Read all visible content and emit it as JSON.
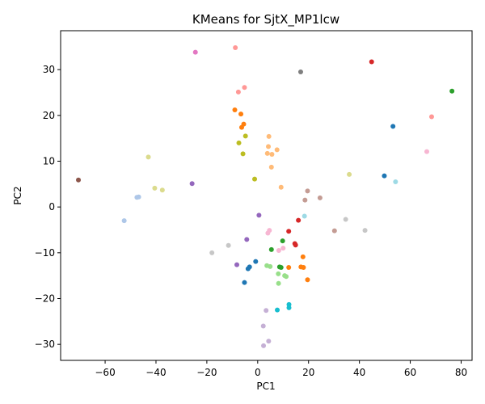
{
  "chart_data": {
    "type": "scatter",
    "title": "KMeans for SjtX_MP1lcw",
    "xlabel": "PC1",
    "ylabel": "PC2",
    "xlim": [
      -77.5,
      84.3
    ],
    "ylim": [
      -33.5,
      38.5
    ],
    "xticks": [
      -60,
      -40,
      -20,
      0,
      20,
      40,
      60,
      80
    ],
    "yticks": [
      -30,
      -20,
      -10,
      0,
      10,
      20,
      30
    ],
    "grid": false,
    "points": [
      {
        "x": -70.5,
        "y": 5.9,
        "color": "#8c564b"
      },
      {
        "x": -52.5,
        "y": -3.0,
        "color": "#aec7e8"
      },
      {
        "x": -47.5,
        "y": 2.1,
        "color": "#aec7e8"
      },
      {
        "x": -46.8,
        "y": 2.2,
        "color": "#aec7e8"
      },
      {
        "x": -43.0,
        "y": 10.9,
        "color": "#dbdb8d"
      },
      {
        "x": -40.5,
        "y": 4.1,
        "color": "#dbdb8d"
      },
      {
        "x": -37.5,
        "y": 3.7,
        "color": "#dbdb8d"
      },
      {
        "x": -24.5,
        "y": 33.8,
        "color": "#e377c2"
      },
      {
        "x": -25.8,
        "y": 5.1,
        "color": "#9467bd"
      },
      {
        "x": -18.0,
        "y": -10.0,
        "color": "#c7c7c7"
      },
      {
        "x": -11.5,
        "y": -8.4,
        "color": "#c7c7c7"
      },
      {
        "x": -8.8,
        "y": 34.8,
        "color": "#ff9896"
      },
      {
        "x": -7.6,
        "y": 25.1,
        "color": "#ff9896"
      },
      {
        "x": -5.2,
        "y": 26.1,
        "color": "#ff9896"
      },
      {
        "x": -9.0,
        "y": 21.2,
        "color": "#ff7f0e"
      },
      {
        "x": -6.6,
        "y": 20.3,
        "color": "#ff7f0e"
      },
      {
        "x": -5.5,
        "y": 18.1,
        "color": "#ff7f0e"
      },
      {
        "x": -6.3,
        "y": 17.4,
        "color": "#ff7f0e"
      },
      {
        "x": -4.8,
        "y": 15.5,
        "color": "#bcbd22"
      },
      {
        "x": -7.4,
        "y": 14.0,
        "color": "#bcbd22"
      },
      {
        "x": -5.8,
        "y": 11.6,
        "color": "#bcbd22"
      },
      {
        "x": -1.2,
        "y": 6.1,
        "color": "#bcbd22"
      },
      {
        "x": 4.4,
        "y": 15.4,
        "color": "#ffbb78"
      },
      {
        "x": 4.2,
        "y": 13.2,
        "color": "#ffbb78"
      },
      {
        "x": 7.6,
        "y": 12.5,
        "color": "#ffbb78"
      },
      {
        "x": 3.8,
        "y": 11.7,
        "color": "#ffbb78"
      },
      {
        "x": 5.6,
        "y": 11.5,
        "color": "#ffbb78"
      },
      {
        "x": 5.4,
        "y": 8.7,
        "color": "#ffbb78"
      },
      {
        "x": 9.2,
        "y": 4.3,
        "color": "#ffbb78"
      },
      {
        "x": 0.5,
        "y": -1.8,
        "color": "#9467bd"
      },
      {
        "x": -4.3,
        "y": -7.1,
        "color": "#9467bd"
      },
      {
        "x": -8.2,
        "y": -12.6,
        "color": "#9467bd"
      },
      {
        "x": -0.8,
        "y": -11.9,
        "color": "#1f77b4"
      },
      {
        "x": -3.2,
        "y": -13.1,
        "color": "#1f77b4"
      },
      {
        "x": -3.8,
        "y": -13.5,
        "color": "#1f77b4"
      },
      {
        "x": -5.2,
        "y": -16.5,
        "color": "#1f77b4"
      },
      {
        "x": 4.6,
        "y": -5.1,
        "color": "#f7b6d2"
      },
      {
        "x": 4.0,
        "y": -5.7,
        "color": "#f7b6d2"
      },
      {
        "x": 8.3,
        "y": -9.5,
        "color": "#f7b6d2"
      },
      {
        "x": 10.0,
        "y": -9.0,
        "color": "#f7b6d2"
      },
      {
        "x": 9.8,
        "y": -7.4,
        "color": "#2ca02c"
      },
      {
        "x": 5.4,
        "y": -9.3,
        "color": "#2ca02c"
      },
      {
        "x": 8.6,
        "y": -13.1,
        "color": "#2ca02c"
      },
      {
        "x": 9.2,
        "y": -13.2,
        "color": "#2ca02c"
      },
      {
        "x": 3.6,
        "y": -12.8,
        "color": "#98df8a"
      },
      {
        "x": 4.9,
        "y": -13.0,
        "color": "#98df8a"
      },
      {
        "x": 8.1,
        "y": -14.6,
        "color": "#98df8a"
      },
      {
        "x": 10.6,
        "y": -15.0,
        "color": "#98df8a"
      },
      {
        "x": 11.2,
        "y": -15.2,
        "color": "#98df8a"
      },
      {
        "x": 8.2,
        "y": -16.7,
        "color": "#98df8a"
      },
      {
        "x": 12.2,
        "y": -5.3,
        "color": "#d62728"
      },
      {
        "x": 14.6,
        "y": -8.0,
        "color": "#d62728"
      },
      {
        "x": 14.9,
        "y": -8.3,
        "color": "#d62728"
      },
      {
        "x": 16.0,
        "y": -2.9,
        "color": "#d62728"
      },
      {
        "x": 17.8,
        "y": -10.9,
        "color": "#ff7f0e"
      },
      {
        "x": 12.2,
        "y": -13.2,
        "color": "#ff7f0e"
      },
      {
        "x": 17.0,
        "y": -13.1,
        "color": "#ff7f0e"
      },
      {
        "x": 18.0,
        "y": -13.2,
        "color": "#ff7f0e"
      },
      {
        "x": 19.6,
        "y": -15.9,
        "color": "#ff7f0e"
      },
      {
        "x": 18.4,
        "y": -2.0,
        "color": "#9edae5"
      },
      {
        "x": 7.7,
        "y": -22.5,
        "color": "#17becf"
      },
      {
        "x": 12.3,
        "y": -21.3,
        "color": "#17becf"
      },
      {
        "x": 12.3,
        "y": -22.0,
        "color": "#17becf"
      },
      {
        "x": 3.3,
        "y": -22.6,
        "color": "#c5b0d5"
      },
      {
        "x": 2.2,
        "y": -26.0,
        "color": "#c5b0d5"
      },
      {
        "x": 4.3,
        "y": -29.3,
        "color": "#c5b0d5"
      },
      {
        "x": 2.3,
        "y": -30.3,
        "color": "#c5b0d5"
      },
      {
        "x": 16.9,
        "y": 29.5,
        "color": "#7f7f7f"
      },
      {
        "x": 19.6,
        "y": 3.5,
        "color": "#c49c94"
      },
      {
        "x": 18.6,
        "y": 1.5,
        "color": "#c49c94"
      },
      {
        "x": 24.5,
        "y": 2.0,
        "color": "#c49c94"
      },
      {
        "x": 30.2,
        "y": -5.2,
        "color": "#c49c94"
      },
      {
        "x": 34.6,
        "y": -2.7,
        "color": "#c7c7c7"
      },
      {
        "x": 42.2,
        "y": -5.1,
        "color": "#c7c7c7"
      },
      {
        "x": 36.0,
        "y": 7.1,
        "color": "#dbdb8d"
      },
      {
        "x": 44.8,
        "y": 31.7,
        "color": "#d62728"
      },
      {
        "x": 53.2,
        "y": 17.6,
        "color": "#1f77b4"
      },
      {
        "x": 49.8,
        "y": 6.8,
        "color": "#1f77b4"
      },
      {
        "x": 54.2,
        "y": 5.5,
        "color": "#9edae5"
      },
      {
        "x": 66.5,
        "y": 12.1,
        "color": "#f7b6d2"
      },
      {
        "x": 68.4,
        "y": 19.7,
        "color": "#ff9896"
      },
      {
        "x": 76.4,
        "y": 25.3,
        "color": "#2ca02c"
      }
    ]
  }
}
